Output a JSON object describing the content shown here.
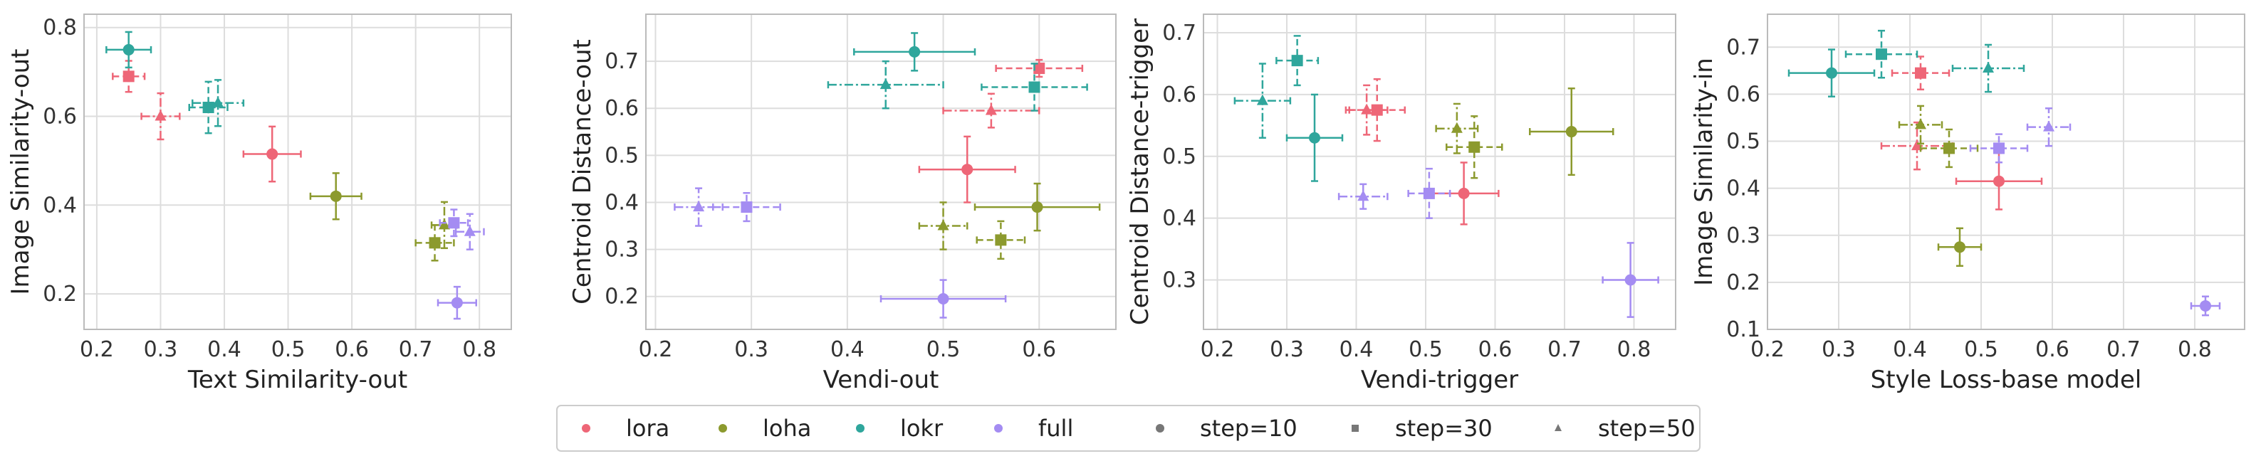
{
  "chart_data": [
    {
      "type": "scatter",
      "xlabel": "Text Similarity-out",
      "ylabel": "Image Similarity-out",
      "xlim": [
        0.18,
        0.85
      ],
      "ylim": [
        0.12,
        0.83
      ],
      "xticks": [
        0.2,
        0.3,
        0.4,
        0.5,
        0.6,
        0.7,
        0.8
      ],
      "yticks": [
        0.2,
        0.4,
        0.6,
        0.8
      ],
      "points": [
        {
          "method": "lora",
          "step": 10,
          "x": 0.475,
          "y": 0.515,
          "xerr": 0.045,
          "yerr": 0.062
        },
        {
          "method": "lora",
          "step": 30,
          "x": 0.25,
          "y": 0.69,
          "xerr": 0.025,
          "yerr": 0.035
        },
        {
          "method": "lora",
          "step": 50,
          "x": 0.3,
          "y": 0.6,
          "xerr": 0.03,
          "yerr": 0.052
        },
        {
          "method": "loha",
          "step": 10,
          "x": 0.575,
          "y": 0.42,
          "xerr": 0.04,
          "yerr": 0.052
        },
        {
          "method": "loha",
          "step": 30,
          "x": 0.73,
          "y": 0.315,
          "xerr": 0.03,
          "yerr": 0.04
        },
        {
          "method": "loha",
          "step": 50,
          "x": 0.745,
          "y": 0.355,
          "xerr": 0.02,
          "yerr": 0.052
        },
        {
          "method": "lokr",
          "step": 10,
          "x": 0.25,
          "y": 0.75,
          "xerr": 0.035,
          "yerr": 0.04
        },
        {
          "method": "lokr",
          "step": 30,
          "x": 0.375,
          "y": 0.62,
          "xerr": 0.03,
          "yerr": 0.058
        },
        {
          "method": "lokr",
          "step": 50,
          "x": 0.39,
          "y": 0.63,
          "xerr": 0.04,
          "yerr": 0.052
        },
        {
          "method": "full",
          "step": 10,
          "x": 0.765,
          "y": 0.18,
          "xerr": 0.03,
          "yerr": 0.036
        },
        {
          "method": "full",
          "step": 30,
          "x": 0.76,
          "y": 0.36,
          "xerr": 0.022,
          "yerr": 0.03
        },
        {
          "method": "full",
          "step": 50,
          "x": 0.785,
          "y": 0.34,
          "xerr": 0.022,
          "yerr": 0.04
        }
      ]
    },
    {
      "type": "scatter",
      "xlabel": "Vendi-out",
      "ylabel": "Centroid Distance-out",
      "xlim": [
        0.19,
        0.68
      ],
      "ylim": [
        0.13,
        0.8
      ],
      "xticks": [
        0.2,
        0.3,
        0.4,
        0.5,
        0.6
      ],
      "yticks": [
        0.2,
        0.3,
        0.4,
        0.5,
        0.6,
        0.7
      ],
      "points": [
        {
          "method": "lora",
          "step": 10,
          "x": 0.525,
          "y": 0.47,
          "xerr": 0.05,
          "yerr": 0.07
        },
        {
          "method": "lora",
          "step": 30,
          "x": 0.6,
          "y": 0.685,
          "xerr": 0.045,
          "yerr": 0.018
        },
        {
          "method": "lora",
          "step": 50,
          "x": 0.55,
          "y": 0.595,
          "xerr": 0.05,
          "yerr": 0.036
        },
        {
          "method": "loha",
          "step": 10,
          "x": 0.598,
          "y": 0.39,
          "xerr": 0.065,
          "yerr": 0.05
        },
        {
          "method": "loha",
          "step": 30,
          "x": 0.56,
          "y": 0.32,
          "xerr": 0.025,
          "yerr": 0.04
        },
        {
          "method": "loha",
          "step": 50,
          "x": 0.5,
          "y": 0.35,
          "xerr": 0.025,
          "yerr": 0.05
        },
        {
          "method": "lokr",
          "step": 10,
          "x": 0.47,
          "y": 0.72,
          "xerr": 0.063,
          "yerr": 0.04
        },
        {
          "method": "lokr",
          "step": 30,
          "x": 0.595,
          "y": 0.645,
          "xerr": 0.055,
          "yerr": 0.05
        },
        {
          "method": "lokr",
          "step": 50,
          "x": 0.44,
          "y": 0.65,
          "xerr": 0.06,
          "yerr": 0.05
        },
        {
          "method": "full",
          "step": 10,
          "x": 0.5,
          "y": 0.195,
          "xerr": 0.065,
          "yerr": 0.04
        },
        {
          "method": "full",
          "step": 30,
          "x": 0.295,
          "y": 0.39,
          "xerr": 0.035,
          "yerr": 0.03
        },
        {
          "method": "full",
          "step": 50,
          "x": 0.245,
          "y": 0.39,
          "xerr": 0.025,
          "yerr": 0.04
        }
      ]
    },
    {
      "type": "scatter",
      "xlabel": "Vendi-trigger",
      "ylabel": "Centroid Distance-trigger",
      "xlim": [
        0.18,
        0.86
      ],
      "ylim": [
        0.22,
        0.73
      ],
      "xticks": [
        0.2,
        0.3,
        0.4,
        0.5,
        0.6,
        0.7,
        0.8
      ],
      "yticks": [
        0.3,
        0.4,
        0.5,
        0.6,
        0.7
      ],
      "points": [
        {
          "method": "lora",
          "step": 10,
          "x": 0.555,
          "y": 0.44,
          "xerr": 0.05,
          "yerr": 0.05
        },
        {
          "method": "lora",
          "step": 30,
          "x": 0.43,
          "y": 0.575,
          "xerr": 0.04,
          "yerr": 0.05
        },
        {
          "method": "lora",
          "step": 50,
          "x": 0.415,
          "y": 0.575,
          "xerr": 0.03,
          "yerr": 0.04
        },
        {
          "method": "loha",
          "step": 10,
          "x": 0.71,
          "y": 0.54,
          "xerr": 0.06,
          "yerr": 0.07
        },
        {
          "method": "loha",
          "step": 30,
          "x": 0.57,
          "y": 0.515,
          "xerr": 0.04,
          "yerr": 0.05
        },
        {
          "method": "loha",
          "step": 50,
          "x": 0.545,
          "y": 0.545,
          "xerr": 0.03,
          "yerr": 0.04
        },
        {
          "method": "lokr",
          "step": 10,
          "x": 0.34,
          "y": 0.53,
          "xerr": 0.04,
          "yerr": 0.07
        },
        {
          "method": "lokr",
          "step": 30,
          "x": 0.315,
          "y": 0.655,
          "xerr": 0.03,
          "yerr": 0.04
        },
        {
          "method": "lokr",
          "step": 50,
          "x": 0.265,
          "y": 0.59,
          "xerr": 0.04,
          "yerr": 0.06
        },
        {
          "method": "full",
          "step": 10,
          "x": 0.795,
          "y": 0.3,
          "xerr": 0.04,
          "yerr": 0.06
        },
        {
          "method": "full",
          "step": 30,
          "x": 0.505,
          "y": 0.44,
          "xerr": 0.03,
          "yerr": 0.04
        },
        {
          "method": "full",
          "step": 50,
          "x": 0.41,
          "y": 0.435,
          "xerr": 0.035,
          "yerr": 0.02
        }
      ]
    },
    {
      "type": "scatter",
      "xlabel": "Style Loss-base model",
      "ylabel": "Image Similarity-in",
      "xlim": [
        0.2,
        0.87
      ],
      "ylim": [
        0.1,
        0.77
      ],
      "xticks": [
        0.2,
        0.3,
        0.4,
        0.5,
        0.6,
        0.7,
        0.8
      ],
      "yticks": [
        0.1,
        0.2,
        0.3,
        0.4,
        0.5,
        0.6,
        0.7
      ],
      "points": [
        {
          "method": "lora",
          "step": 10,
          "x": 0.525,
          "y": 0.415,
          "xerr": 0.06,
          "yerr": 0.06
        },
        {
          "method": "lora",
          "step": 30,
          "x": 0.415,
          "y": 0.645,
          "xerr": 0.04,
          "yerr": 0.035
        },
        {
          "method": "lora",
          "step": 50,
          "x": 0.41,
          "y": 0.49,
          "xerr": 0.05,
          "yerr": 0.05
        },
        {
          "method": "loha",
          "step": 10,
          "x": 0.47,
          "y": 0.275,
          "xerr": 0.03,
          "yerr": 0.04
        },
        {
          "method": "loha",
          "step": 30,
          "x": 0.455,
          "y": 0.485,
          "xerr": 0.04,
          "yerr": 0.04
        },
        {
          "method": "loha",
          "step": 50,
          "x": 0.415,
          "y": 0.535,
          "xerr": 0.03,
          "yerr": 0.04
        },
        {
          "method": "lokr",
          "step": 10,
          "x": 0.29,
          "y": 0.645,
          "xerr": 0.06,
          "yerr": 0.05
        },
        {
          "method": "lokr",
          "step": 30,
          "x": 0.36,
          "y": 0.685,
          "xerr": 0.05,
          "yerr": 0.05
        },
        {
          "method": "lokr",
          "step": 50,
          "x": 0.51,
          "y": 0.655,
          "xerr": 0.05,
          "yerr": 0.05
        },
        {
          "method": "full",
          "step": 10,
          "x": 0.815,
          "y": 0.15,
          "xerr": 0.02,
          "yerr": 0.02
        },
        {
          "method": "full",
          "step": 30,
          "x": 0.525,
          "y": 0.485,
          "xerr": 0.04,
          "yerr": 0.03
        },
        {
          "method": "full",
          "step": 50,
          "x": 0.595,
          "y": 0.53,
          "xerr": 0.03,
          "yerr": 0.04
        }
      ]
    }
  ],
  "colors": {
    "lora": "#ee6677",
    "loha": "#8c9a2e",
    "lokr": "#2fa69c",
    "full": "#a48cf2",
    "grid": "#dddddd",
    "axes": "#bbbbbb"
  },
  "legend": {
    "placement": "bottom-center",
    "items": [
      {
        "label": "lora",
        "marker": "circle",
        "color": "lora"
      },
      {
        "label": "loha",
        "marker": "circle",
        "color": "loha"
      },
      {
        "label": "lokr",
        "marker": "circle",
        "color": "lokr"
      },
      {
        "label": "full",
        "marker": "circle",
        "color": "full"
      },
      {
        "label": "step=10",
        "marker": "circle",
        "color": "gray"
      },
      {
        "label": "step=30",
        "marker": "square",
        "color": "gray"
      },
      {
        "label": "step=50",
        "marker": "triangle",
        "color": "gray"
      }
    ]
  }
}
